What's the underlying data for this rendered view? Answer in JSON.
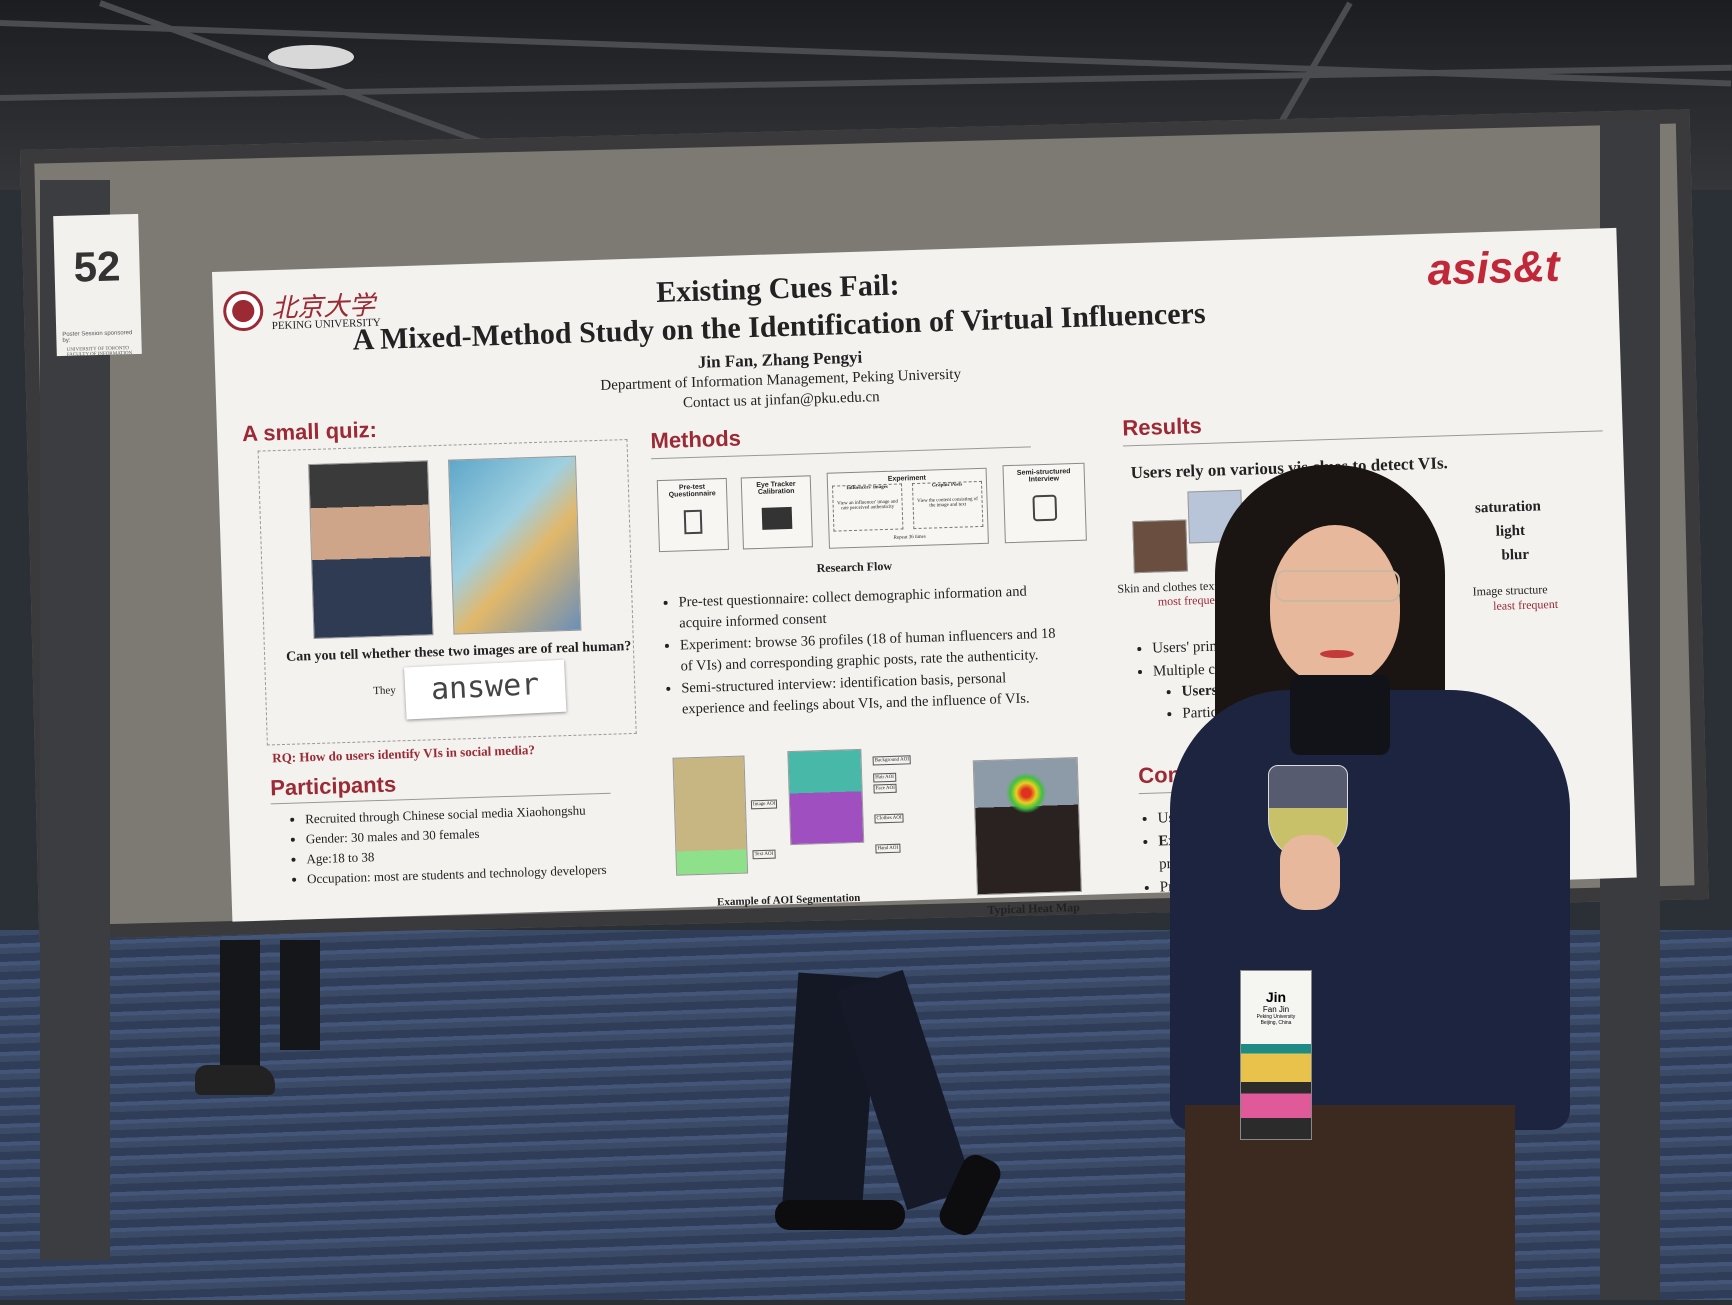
{
  "booth_card": {
    "number": "52",
    "sponsor_line": "Poster Session sponsored by:",
    "sponsor": "UNIVERSITY OF TORONTO FACULTY OF INFORMATION"
  },
  "poster": {
    "university_cn": "北京大学",
    "university_en": "PEKING UNIVERSITY",
    "conference_logo": "asis&t",
    "title_line1": "Existing Cues Fail:",
    "title_line2": "A Mixed-Method Study on the Identification of Virtual Influencers",
    "authors": "Jin Fan, Zhang Pengyi",
    "department": "Department of Information Management, Peking University",
    "contact": "Contact us at jinfan@pku.edu.cn",
    "quiz": {
      "heading": "A small quiz:",
      "question": "Can you tell whether these two images are of real human?",
      "answer_prefix": "They",
      "answer_flap": "answer"
    },
    "rq": "RQ: How do users identify VIs in social media?",
    "participants": {
      "heading": "Participants",
      "items": [
        "Recruited through Chinese social media Xiaohongshu",
        "Gender: 30 males and 30 females",
        "Age:18 to 38",
        "Occupation: most are students and technology developers"
      ]
    },
    "methods": {
      "heading": "Methods",
      "flow": {
        "steps": [
          "Pre-test Questionnaire",
          "Eye Tracker Calibration",
          "Experiment",
          "Semi-structured Interview"
        ],
        "experiment_sub": [
          {
            "title": "Influencers' images",
            "text": "View an influencer' image and rate perceived authenticity"
          },
          {
            "title": "Graphic Posts",
            "text": "View the content consisting of the image and text"
          }
        ],
        "repeat": "Repeat 36 times",
        "caption": "Research Flow"
      },
      "items": [
        "Pre-test questionnaire: collect demographic information and acquire informed consent",
        "Experiment: browse 36 profiles (18 of human influencers and 18 of VIs) and corresponding graphic posts, rate the authenticity.",
        "Semi-structured interview: identification basis, personal experience and feelings about VIs, and the influence of VIs."
      ],
      "aoi": {
        "labels": [
          "Image AOI",
          "Text AOI",
          "Background AOI",
          "Hair AOI",
          "Face AOI",
          "Clothes AOI",
          "Hand AOI"
        ],
        "caption": "Example of AOI Segmentation"
      },
      "heatmap_caption": "Typical Heat Map"
    },
    "results": {
      "heading": "Results",
      "subtitle": "Users rely on various vis   clues to detect VIs.",
      "cue1": "Skin and clothes texture",
      "cue1_note": "most frequent",
      "cue2_partial": "ortions",
      "cue3_words": [
        "saturation",
        "light",
        "blur"
      ],
      "cue3": "Image structure",
      "cue3_note": "least frequent",
      "items": [
        "Users' primary f",
        "Multiple cues fa                         ce."
      ],
      "sub_items": [
        "Users mad                       ll accuracy is low (59.2",
        "Partic                                          )."
      ]
    },
    "conclusions": {
      "heading": "Conclu",
      "items": [
        "Users ca",
        "Existing",
        "provide",
        "Professi"
      ]
    }
  },
  "badge": {
    "first_name": "Jin",
    "full_name": "Fan Jin",
    "affiliation": "Peking University Beijing, China"
  },
  "colors": {
    "accent": "#9b2a35",
    "poster_bg": "#f4f2ef",
    "sweater": "#1d2440",
    "carpet": "#3b4a66"
  }
}
